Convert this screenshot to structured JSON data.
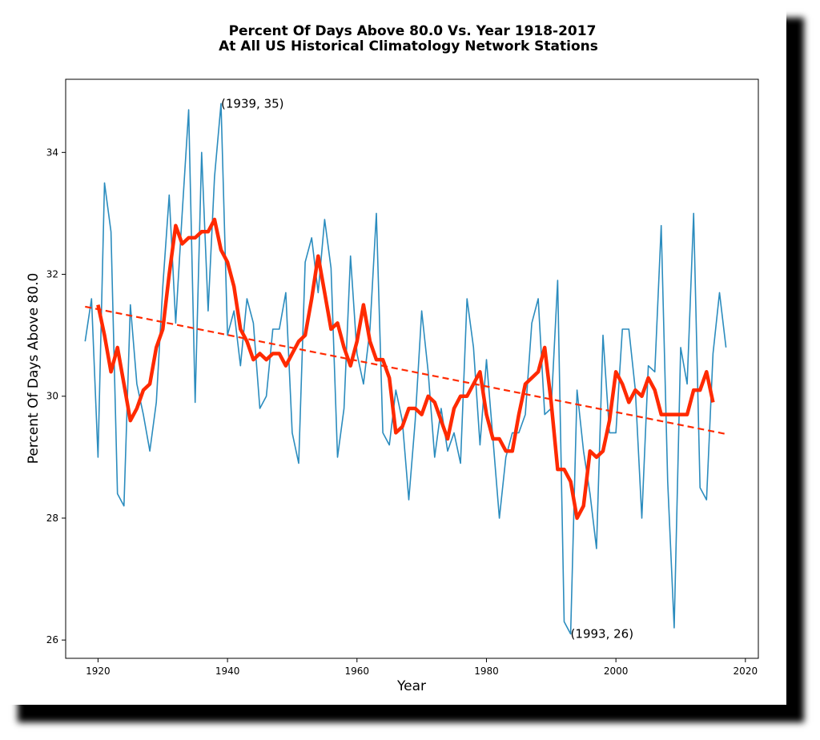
{
  "chart_data": {
    "type": "line",
    "title_line1": "Percent Of Days Above 80.0 Vs. Year 1918-2017",
    "title_line2": "At All US Historical Climatology Network Stations",
    "xlabel": "Year",
    "ylabel": "Percent Of Days Above 80.0",
    "xlim": [
      1915,
      2022
    ],
    "ylim": [
      25.7,
      35.2
    ],
    "x_ticks": [
      1920,
      1940,
      1960,
      1980,
      2000,
      2020
    ],
    "y_ticks": [
      26,
      28,
      30,
      32,
      34
    ],
    "grid": false,
    "annotations": [
      {
        "text": "(1939, 35)",
        "x": 1939,
        "y": 34.8
      },
      {
        "text": "(1993, 26)",
        "x": 1993,
        "y": 26.1
      }
    ],
    "series": [
      {
        "style": "annual",
        "color": "#2b8cbe",
        "x": [
          1918,
          1919,
          1920,
          1921,
          1922,
          1923,
          1924,
          1925,
          1926,
          1927,
          1928,
          1929,
          1930,
          1931,
          1932,
          1933,
          1934,
          1935,
          1936,
          1937,
          1938,
          1939,
          1940,
          1941,
          1942,
          1943,
          1944,
          1945,
          1946,
          1947,
          1948,
          1949,
          1950,
          1951,
          1952,
          1953,
          1954,
          1955,
          1956,
          1957,
          1958,
          1959,
          1960,
          1961,
          1962,
          1963,
          1964,
          1965,
          1966,
          1967,
          1968,
          1969,
          1970,
          1971,
          1972,
          1973,
          1974,
          1975,
          1976,
          1977,
          1978,
          1979,
          1980,
          1981,
          1982,
          1983,
          1984,
          1985,
          1986,
          1987,
          1988,
          1989,
          1990,
          1991,
          1992,
          1993,
          1994,
          1995,
          1996,
          1997,
          1998,
          1999,
          2000,
          2001,
          2002,
          2003,
          2004,
          2005,
          2006,
          2007,
          2008,
          2009,
          2010,
          2011,
          2012,
          2013,
          2014,
          2015,
          2016,
          2017
        ],
        "values": [
          30.9,
          31.6,
          29.0,
          33.5,
          32.7,
          28.4,
          28.2,
          31.5,
          30.2,
          29.7,
          29.1,
          29.9,
          31.8,
          33.3,
          31.2,
          33.0,
          34.7,
          29.9,
          34.0,
          31.4,
          33.6,
          34.8,
          31.0,
          31.4,
          30.5,
          31.6,
          31.2,
          29.8,
          30.0,
          31.1,
          31.1,
          31.7,
          29.4,
          28.9,
          32.2,
          32.6,
          31.7,
          32.9,
          32.1,
          29.0,
          29.8,
          32.3,
          30.7,
          30.2,
          31.1,
          33.0,
          29.4,
          29.2,
          30.1,
          29.6,
          28.3,
          29.6,
          31.4,
          30.4,
          29.0,
          29.8,
          29.1,
          29.4,
          28.9,
          31.6,
          30.8,
          29.2,
          30.6,
          29.3,
          28.0,
          29.0,
          29.4,
          29.4,
          29.7,
          31.2,
          31.6,
          29.7,
          29.8,
          31.9,
          26.3,
          26.1,
          30.1,
          29.1,
          28.4,
          27.5,
          31.0,
          29.4,
          29.4,
          31.1,
          31.1,
          30.1,
          28.0,
          30.5,
          30.4,
          32.8,
          28.6,
          26.2,
          30.8,
          30.2,
          33.0,
          28.5,
          28.3,
          30.7,
          31.7,
          30.8
        ]
      },
      {
        "style": "smoothed",
        "color": "#ff2a00",
        "x": [
          1920,
          1921,
          1922,
          1923,
          1924,
          1925,
          1926,
          1927,
          1928,
          1929,
          1930,
          1931,
          1932,
          1933,
          1934,
          1935,
          1936,
          1937,
          1938,
          1939,
          1940,
          1941,
          1942,
          1943,
          1944,
          1945,
          1946,
          1947,
          1948,
          1949,
          1950,
          1951,
          1952,
          1953,
          1954,
          1955,
          1956,
          1957,
          1958,
          1959,
          1960,
          1961,
          1962,
          1963,
          1964,
          1965,
          1966,
          1967,
          1968,
          1969,
          1970,
          1971,
          1972,
          1973,
          1974,
          1975,
          1976,
          1977,
          1978,
          1979,
          1980,
          1981,
          1982,
          1983,
          1984,
          1985,
          1986,
          1987,
          1988,
          1989,
          1990,
          1991,
          1992,
          1993,
          1994,
          1995,
          1996,
          1997,
          1998,
          1999,
          2000,
          2001,
          2002,
          2003,
          2004,
          2005,
          2006,
          2007,
          2008,
          2009,
          2010,
          2011,
          2012,
          2013,
          2014,
          2015
        ],
        "values": [
          31.5,
          31.0,
          30.4,
          30.8,
          30.2,
          29.6,
          29.8,
          30.1,
          30.2,
          30.8,
          31.1,
          32.0,
          32.8,
          32.5,
          32.6,
          32.6,
          32.7,
          32.7,
          32.9,
          32.4,
          32.2,
          31.8,
          31.1,
          30.9,
          30.6,
          30.7,
          30.6,
          30.7,
          30.7,
          30.5,
          30.7,
          30.9,
          31.0,
          31.6,
          32.3,
          31.7,
          31.1,
          31.2,
          30.8,
          30.5,
          30.9,
          31.5,
          30.9,
          30.6,
          30.6,
          30.3,
          29.4,
          29.5,
          29.8,
          29.8,
          29.7,
          30.0,
          29.9,
          29.6,
          29.3,
          29.8,
          30.0,
          30.0,
          30.2,
          30.4,
          29.7,
          29.3,
          29.3,
          29.1,
          29.1,
          29.7,
          30.2,
          30.3,
          30.4,
          30.8,
          29.9,
          28.8,
          28.8,
          28.6,
          28.0,
          28.2,
          29.1,
          29.0,
          29.1,
          29.6,
          30.4,
          30.2,
          29.9,
          30.1,
          30.0,
          30.3,
          30.1,
          29.7,
          29.7,
          29.7,
          29.7,
          29.7,
          30.1,
          30.1,
          30.4,
          29.9
        ]
      },
      {
        "style": "trend",
        "color": "#ff2a00",
        "x": [
          1918,
          2017
        ],
        "values": [
          31.47,
          29.38
        ]
      }
    ]
  }
}
